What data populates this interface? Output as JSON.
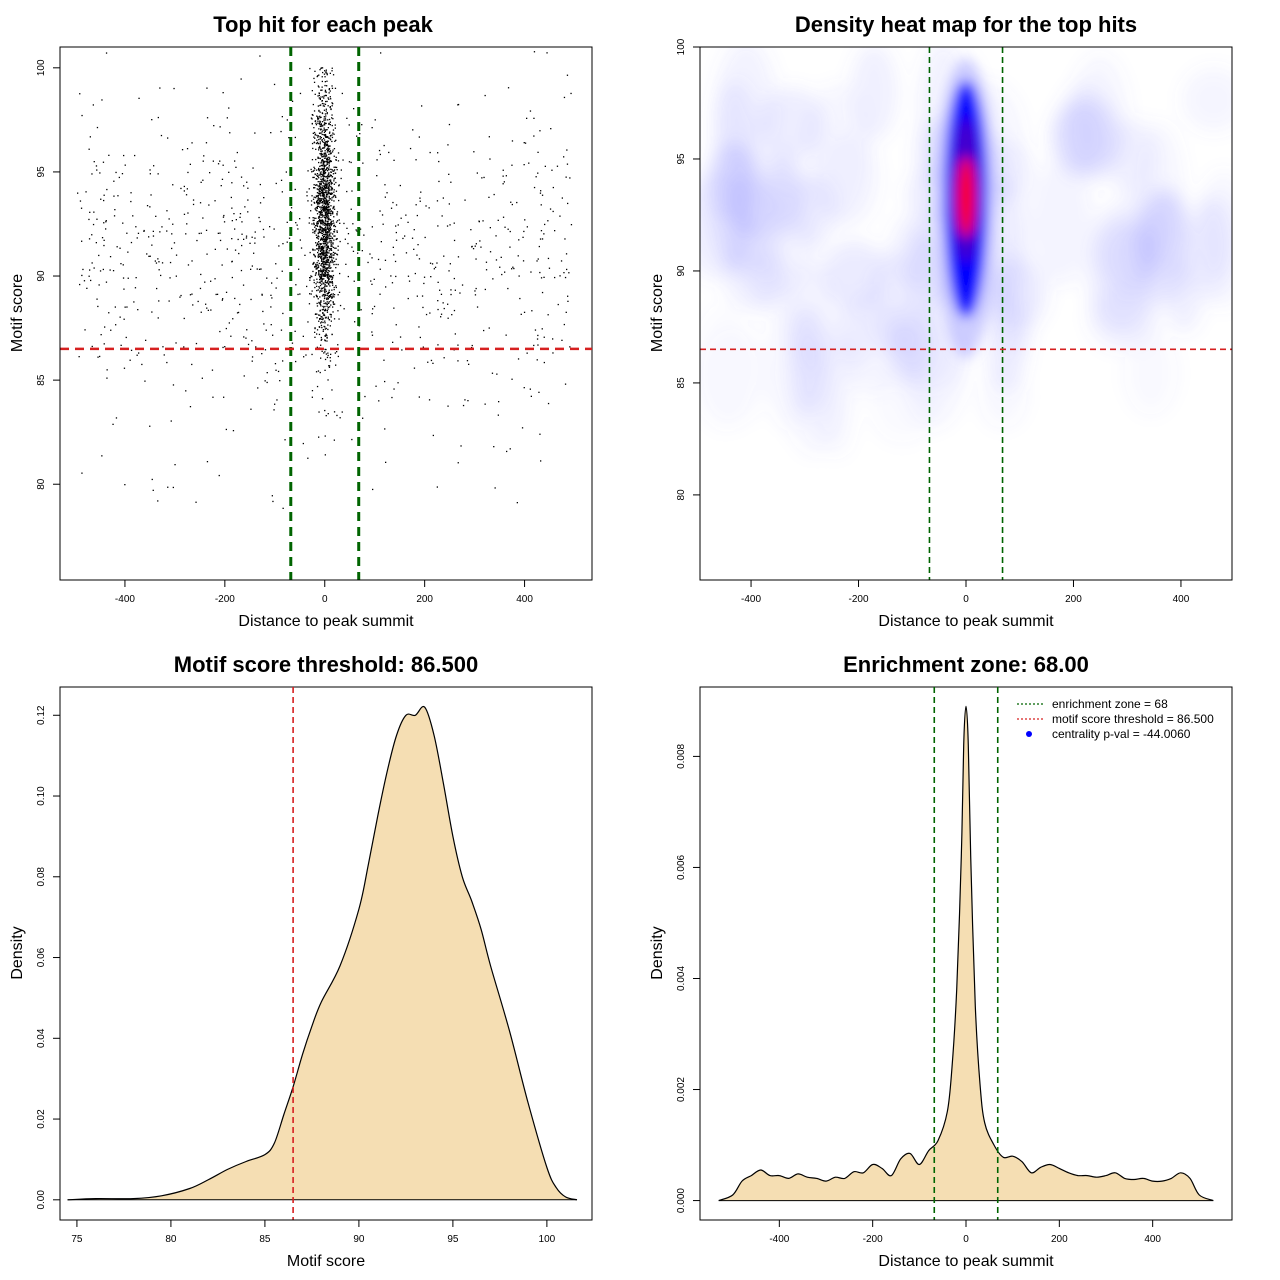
{
  "chart_data": [
    {
      "id": "scatter",
      "type": "scatter",
      "title": "Top hit for each peak",
      "xlabel": "Distance to peak summit",
      "ylabel": "Motif score",
      "xlim": [
        -530,
        535
      ],
      "ylim": [
        75.4,
        101
      ],
      "xticks": [
        -400,
        -200,
        0,
        200,
        400
      ],
      "yticks": [
        80,
        85,
        90,
        95,
        100
      ],
      "vlines": [
        -68,
        68
      ],
      "hline": 86.5,
      "points_description": "~2500 top-hit points spread across -500..500, concentrated within ±20 of summit with scores 86-100",
      "colors": {
        "points": "#000000",
        "vlines": "#006400",
        "hline": "#d62020"
      }
    },
    {
      "id": "heatmap",
      "type": "heatmap",
      "title": "Density heat map for the top hits",
      "xlabel": "Distance to peak summit",
      "ylabel": "Motif score",
      "xlim": [
        -495,
        495
      ],
      "ylim": [
        76.2,
        100
      ],
      "xticks": [
        -400,
        -200,
        0,
        200,
        400
      ],
      "yticks": [
        80,
        85,
        90,
        95,
        100
      ],
      "vlines": [
        -68,
        68
      ],
      "hline": 86.5,
      "hotspot": {
        "x": 0,
        "y": 93.3
      },
      "colors": {
        "low": "#ffffff",
        "mid": "#0000ff",
        "high": "#ff0000",
        "vlines": "#006400",
        "hline": "#d62020"
      }
    },
    {
      "id": "score-density",
      "type": "area",
      "title": "Motif score threshold: 86.500",
      "xlabel": "Motif score",
      "ylabel": "Density",
      "xlim": [
        74.1,
        102.4
      ],
      "ylim": [
        -0.005,
        0.127
      ],
      "xticks": [
        75,
        80,
        85,
        90,
        95,
        100
      ],
      "yticks": [
        0.0,
        0.02,
        0.04,
        0.06,
        0.08,
        0.1,
        0.12
      ],
      "ytick_labels": [
        "0.00",
        "0.02",
        "0.04",
        "0.06",
        "0.08",
        "0.10",
        "0.12"
      ],
      "vline": 86.5,
      "x": [
        74.5,
        76,
        78,
        79.5,
        81,
        82,
        83,
        84,
        85,
        85.5,
        86,
        86.5,
        87,
        87.5,
        88,
        89,
        90,
        90.5,
        91,
        91.5,
        92,
        92.5,
        93,
        93.5,
        94,
        94.5,
        95,
        95.5,
        96,
        96.5,
        97,
        98,
        99,
        100,
        100.5,
        101,
        101.6
      ],
      "y": [
        0.0,
        0.0003,
        0.0003,
        0.001,
        0.0028,
        0.005,
        0.0075,
        0.0095,
        0.0112,
        0.014,
        0.021,
        0.028,
        0.036,
        0.043,
        0.049,
        0.058,
        0.072,
        0.083,
        0.095,
        0.106,
        0.115,
        0.12,
        0.12,
        0.122,
        0.115,
        0.103,
        0.09,
        0.08,
        0.074,
        0.067,
        0.058,
        0.042,
        0.024,
        0.008,
        0.003,
        0.0007,
        0.0
      ],
      "colors": {
        "fill": "#f5deb3",
        "line": "#000000",
        "vline": "#d62020"
      }
    },
    {
      "id": "position-density",
      "type": "area",
      "title": "Enrichment zone: 68.00",
      "xlabel": "Distance to peak summit",
      "ylabel": "Density",
      "xlim": [
        -570,
        570
      ],
      "ylim": [
        -0.00035,
        0.00925
      ],
      "xticks": [
        -400,
        -200,
        0,
        200,
        400
      ],
      "yticks": [
        0.0,
        0.002,
        0.004,
        0.006,
        0.008
      ],
      "ytick_labels": [
        "0.000",
        "0.002",
        "0.004",
        "0.006",
        "0.008"
      ],
      "vlines": [
        -68,
        68
      ],
      "x": [
        -530,
        -500,
        -480,
        -460,
        -440,
        -420,
        -400,
        -380,
        -360,
        -340,
        -320,
        -300,
        -280,
        -260,
        -240,
        -220,
        -200,
        -180,
        -160,
        -140,
        -120,
        -100,
        -80,
        -60,
        -40,
        -30,
        -20,
        -10,
        -5,
        0,
        5,
        10,
        20,
        30,
        40,
        60,
        80,
        100,
        120,
        140,
        160,
        180,
        200,
        220,
        240,
        260,
        280,
        300,
        320,
        340,
        360,
        380,
        400,
        420,
        440,
        460,
        480,
        500,
        530
      ],
      "y": [
        0.0,
        0.0001,
        0.00035,
        0.00045,
        0.00055,
        0.00045,
        0.00045,
        0.0004,
        0.00048,
        0.00042,
        0.0004,
        0.00035,
        0.00042,
        0.0004,
        0.00052,
        0.0005,
        0.00065,
        0.00058,
        0.00045,
        0.00075,
        0.00085,
        0.00065,
        0.0009,
        0.00108,
        0.0016,
        0.0024,
        0.0038,
        0.0062,
        0.0082,
        0.0089,
        0.0082,
        0.0062,
        0.0035,
        0.0021,
        0.0014,
        0.001,
        0.00078,
        0.0008,
        0.0007,
        0.0005,
        0.0006,
        0.00065,
        0.00058,
        0.0005,
        0.00045,
        0.00045,
        0.00042,
        0.00045,
        0.0005,
        0.0004,
        0.00038,
        0.0004,
        0.00035,
        0.00035,
        0.0004,
        0.0005,
        0.0004,
        0.0001,
        0.0
      ],
      "colors": {
        "fill": "#f5deb3",
        "line": "#000000",
        "vlines": "#006400"
      },
      "legend": {
        "placement": "top-right",
        "entries": [
          {
            "label": "enrichment zone = 68",
            "symbol": "dotted-line",
            "color": "#006400"
          },
          {
            "label": "motif score threshold = 86.500",
            "symbol": "dotted-line",
            "color": "#d62020"
          },
          {
            "label": "centrality p-val = -44.0060",
            "symbol": "dot",
            "color": "#0000ff"
          }
        ]
      }
    }
  ]
}
